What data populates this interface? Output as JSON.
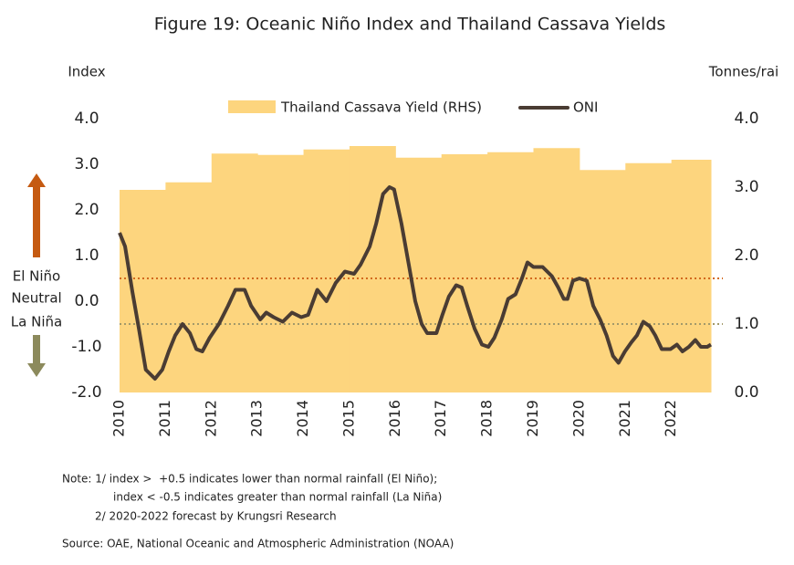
{
  "chart_data": {
    "type": "line",
    "title": "Figure 19: Oceanic Niño Index and Thailand Cassava Yields",
    "y_label": "Index",
    "y2_label": "Tonnes/rai",
    "xlim": [
      2010,
      2022.86
    ],
    "xticks": [
      2010,
      2011,
      2012,
      2013,
      2014,
      2015,
      2016,
      2017,
      2018,
      2019,
      2020,
      2021,
      2022
    ],
    "ylim": [
      -2,
      4
    ],
    "yticks": [
      {
        "value": 4,
        "label": "4.0"
      },
      {
        "value": 3,
        "label": "3.0"
      },
      {
        "value": 2,
        "label": "2.0"
      },
      {
        "value": 1,
        "label": "1.0"
      },
      {
        "value": 0,
        "label": "0.0"
      },
      {
        "value": -1,
        "label": "-1.0"
      },
      {
        "value": -2,
        "label": "-2.0"
      }
    ],
    "y2lim": [
      0,
      4
    ],
    "y2ticks": [
      {
        "value": 4,
        "label": "4.0"
      },
      {
        "value": 3,
        "label": "3.0"
      },
      {
        "value": 2,
        "label": "2.0"
      },
      {
        "value": 1,
        "label": "1.0"
      },
      {
        "value": 0,
        "label": "0.0"
      }
    ],
    "series": [
      {
        "name": "Thailand Cassava Yield (RHS)",
        "type": "area",
        "axis": "y2",
        "color": "#fdd57e",
        "x": [
          2010,
          2011,
          2012,
          2013,
          2014,
          2015,
          2016,
          2017,
          2018,
          2019,
          2020,
          2021,
          2022
        ],
        "values": [
          2.96,
          3.07,
          3.49,
          3.47,
          3.55,
          3.6,
          3.43,
          3.48,
          3.51,
          3.57,
          3.25,
          3.35,
          3.4
        ]
      },
      {
        "name": "ONI",
        "type": "line",
        "color": "#4a3c33",
        "x": [
          2010.0,
          2010.12,
          2010.28,
          2010.42,
          2010.57,
          2010.77,
          2010.93,
          2011.07,
          2011.21,
          2011.37,
          2011.53,
          2011.67,
          2011.8,
          2011.96,
          2012.16,
          2012.36,
          2012.52,
          2012.72,
          2012.86,
          2013.06,
          2013.19,
          2013.35,
          2013.55,
          2013.75,
          2013.95,
          2014.1,
          2014.3,
          2014.5,
          2014.7,
          2014.9,
          2015.1,
          2015.24,
          2015.44,
          2015.58,
          2015.73,
          2015.87,
          2015.97,
          2016.13,
          2016.29,
          2016.43,
          2016.57,
          2016.69,
          2016.89,
          2017.02,
          2017.16,
          2017.32,
          2017.44,
          2017.56,
          2017.72,
          2017.88,
          2018.02,
          2018.15,
          2018.31,
          2018.45,
          2018.61,
          2018.75,
          2018.87,
          2019.0,
          2019.2,
          2019.4,
          2019.54,
          2019.66,
          2019.74,
          2019.86,
          2020.0,
          2020.16,
          2020.3,
          2020.45,
          2020.59,
          2020.73,
          2020.85,
          2020.99,
          2021.13,
          2021.25,
          2021.39,
          2021.53,
          2021.65,
          2021.79,
          2021.98,
          2022.12,
          2022.24,
          2022.38,
          2022.52,
          2022.64,
          2022.78,
          2022.86
        ],
        "values": [
          1.5,
          1.2,
          0.2,
          -0.6,
          -1.5,
          -1.7,
          -1.5,
          -1.1,
          -0.75,
          -0.5,
          -0.7,
          -1.05,
          -1.1,
          -0.8,
          -0.5,
          -0.1,
          0.25,
          0.25,
          -0.1,
          -0.4,
          -0.25,
          -0.35,
          -0.45,
          -0.25,
          -0.35,
          -0.3,
          0.25,
          0.0,
          0.4,
          0.65,
          0.6,
          0.8,
          1.2,
          1.7,
          2.35,
          2.5,
          2.45,
          1.7,
          0.8,
          0.0,
          -0.5,
          -0.7,
          -0.7,
          -0.3,
          0.1,
          0.35,
          0.3,
          -0.1,
          -0.6,
          -0.95,
          -1.0,
          -0.8,
          -0.4,
          0.05,
          0.15,
          0.5,
          0.85,
          0.75,
          0.75,
          0.55,
          0.3,
          0.05,
          0.05,
          0.45,
          0.5,
          0.45,
          -0.1,
          -0.4,
          -0.75,
          -1.2,
          -1.35,
          -1.1,
          -0.9,
          -0.75,
          -0.45,
          -0.55,
          -0.75,
          -1.05,
          -1.05,
          -0.95,
          -1.1,
          -1.0,
          -0.85,
          -1.0,
          -1.0,
          -0.95
        ]
      }
    ],
    "reference_lines": [
      {
        "label": "El Niño",
        "value": 0.5,
        "color": "#d2691e"
      },
      {
        "label": "La Niña",
        "value": -0.5,
        "color": "#a39a6a"
      }
    ],
    "annotations": [
      "Neutral"
    ],
    "notes": [
      "Note: 1/ index >  +0.5 indicates lower than normal rainfall (El Niño);",
      "index < -0.5 indicates greater than normal rainfall (La Niña)",
      "2/ 2020-2022 forecast by Krungsri Research"
    ],
    "source": "Source: OAE, National Oceanic and Atmospheric Administration (NOAA)"
  }
}
